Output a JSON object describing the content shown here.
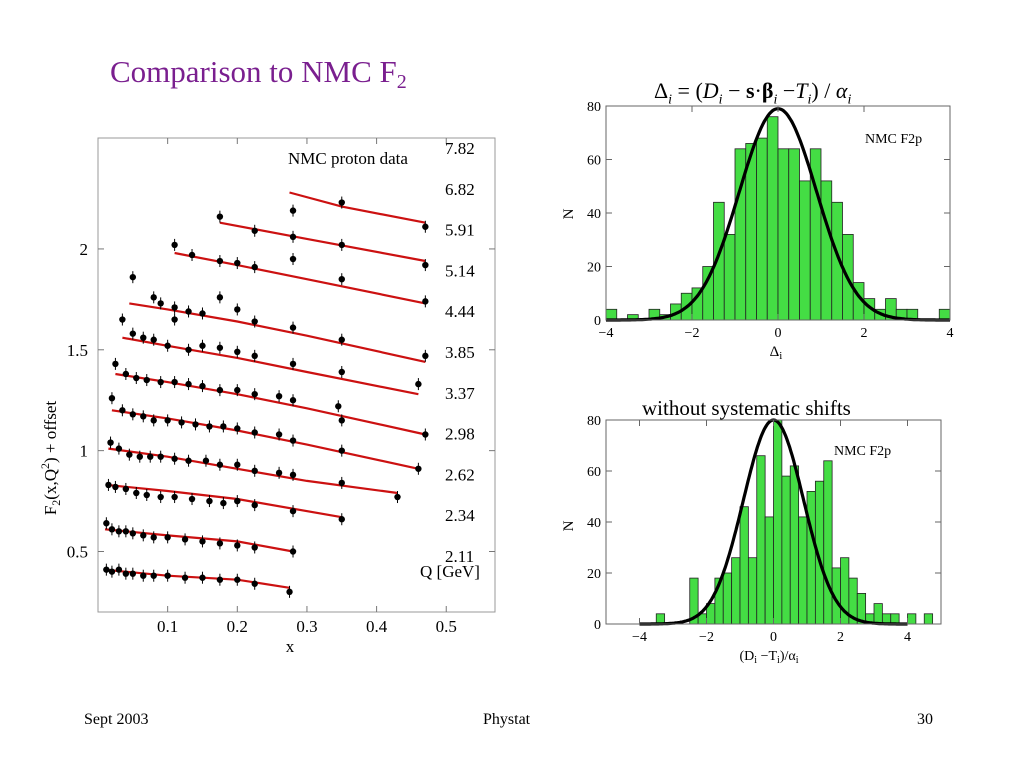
{
  "slide": {
    "title": "Comparison to NMC F",
    "title_sub": "2",
    "footer_left": "Sept 2003",
    "footer_center": "Phystat",
    "footer_right": "30",
    "title_color": "#7a1f8f"
  },
  "chart_data": [
    {
      "type": "scatter",
      "title": "",
      "xlabel": "x",
      "ylabel": "F2(x,Q2) + offset",
      "xlim": [
        0,
        0.57
      ],
      "ylim": [
        0.2,
        2.55
      ],
      "xticks": [
        "0.1",
        "0.2",
        "0.3",
        "0.4",
        "0.5"
      ],
      "xtick_values": [
        0.1,
        0.2,
        0.3,
        0.4,
        0.5
      ],
      "yticks": [
        "0.5",
        "1",
        "1.5",
        "2"
      ],
      "ytick_values": [
        0.5,
        1,
        1.5,
        2
      ],
      "annotation": "NMC proton  data",
      "q_header": "Q [GeV]",
      "fit_color": "#cc1111",
      "series": [
        {
          "name": "2.11",
          "curve": [
            [
              0.008,
              0.41
            ],
            [
              0.1,
              0.38
            ],
            [
              0.2,
              0.36
            ],
            [
              0.275,
              0.32
            ]
          ],
          "points": [
            [
              0.012,
              0.41
            ],
            [
              0.02,
              0.4
            ],
            [
              0.03,
              0.41
            ],
            [
              0.04,
              0.39
            ],
            [
              0.05,
              0.39
            ],
            [
              0.065,
              0.38
            ],
            [
              0.08,
              0.38
            ],
            [
              0.1,
              0.38
            ],
            [
              0.125,
              0.37
            ],
            [
              0.15,
              0.37
            ],
            [
              0.175,
              0.36
            ],
            [
              0.2,
              0.36
            ],
            [
              0.225,
              0.34
            ],
            [
              0.275,
              0.3
            ]
          ]
        },
        {
          "name": "2.34",
          "curve": [
            [
              0.01,
              0.61
            ],
            [
              0.1,
              0.58
            ],
            [
              0.2,
              0.55
            ],
            [
              0.28,
              0.5
            ]
          ],
          "points": [
            [
              0.012,
              0.64
            ],
            [
              0.02,
              0.61
            ],
            [
              0.03,
              0.6
            ],
            [
              0.04,
              0.6
            ],
            [
              0.05,
              0.59
            ],
            [
              0.065,
              0.58
            ],
            [
              0.08,
              0.57
            ],
            [
              0.1,
              0.57
            ],
            [
              0.125,
              0.56
            ],
            [
              0.15,
              0.55
            ],
            [
              0.175,
              0.54
            ],
            [
              0.2,
              0.53
            ],
            [
              0.225,
              0.52
            ],
            [
              0.28,
              0.5
            ]
          ]
        },
        {
          "name": "2.62",
          "curve": [
            [
              0.012,
              0.83
            ],
            [
              0.1,
              0.8
            ],
            [
              0.2,
              0.76
            ],
            [
              0.35,
              0.67
            ]
          ],
          "points": [
            [
              0.015,
              0.83
            ],
            [
              0.025,
              0.82
            ],
            [
              0.04,
              0.81
            ],
            [
              0.055,
              0.79
            ],
            [
              0.07,
              0.78
            ],
            [
              0.09,
              0.77
            ],
            [
              0.11,
              0.77
            ],
            [
              0.135,
              0.76
            ],
            [
              0.16,
              0.75
            ],
            [
              0.18,
              0.74
            ],
            [
              0.2,
              0.75
            ],
            [
              0.225,
              0.73
            ],
            [
              0.28,
              0.7
            ],
            [
              0.35,
              0.66
            ]
          ]
        },
        {
          "name": "2.98",
          "curve": [
            [
              0.015,
              1.01
            ],
            [
              0.1,
              0.97
            ],
            [
              0.2,
              0.91
            ],
            [
              0.3,
              0.85
            ],
            [
              0.43,
              0.79
            ]
          ],
          "points": [
            [
              0.018,
              1.04
            ],
            [
              0.03,
              1.01
            ],
            [
              0.045,
              0.98
            ],
            [
              0.06,
              0.97
            ],
            [
              0.075,
              0.97
            ],
            [
              0.09,
              0.97
            ],
            [
              0.11,
              0.96
            ],
            [
              0.13,
              0.95
            ],
            [
              0.155,
              0.95
            ],
            [
              0.175,
              0.93
            ],
            [
              0.2,
              0.93
            ],
            [
              0.225,
              0.9
            ],
            [
              0.26,
              0.89
            ],
            [
              0.28,
              0.88
            ],
            [
              0.35,
              0.84
            ],
            [
              0.43,
              0.77
            ]
          ]
        },
        {
          "name": "3.37",
          "curve": [
            [
              0.02,
              1.2
            ],
            [
              0.1,
              1.16
            ],
            [
              0.2,
              1.1
            ],
            [
              0.3,
              1.03
            ],
            [
              0.46,
              0.91
            ]
          ],
          "points": [
            [
              0.02,
              1.26
            ],
            [
              0.035,
              1.2
            ],
            [
              0.05,
              1.18
            ],
            [
              0.065,
              1.17
            ],
            [
              0.08,
              1.15
            ],
            [
              0.1,
              1.15
            ],
            [
              0.12,
              1.14
            ],
            [
              0.14,
              1.13
            ],
            [
              0.16,
              1.12
            ],
            [
              0.18,
              1.12
            ],
            [
              0.2,
              1.11
            ],
            [
              0.225,
              1.09
            ],
            [
              0.26,
              1.08
            ],
            [
              0.28,
              1.05
            ],
            [
              0.35,
              1.0
            ],
            [
              0.46,
              0.91
            ]
          ]
        },
        {
          "name": "3.85",
          "curve": [
            [
              0.025,
              1.38
            ],
            [
              0.1,
              1.34
            ],
            [
              0.2,
              1.28
            ],
            [
              0.3,
              1.21
            ],
            [
              0.47,
              1.08
            ]
          ],
          "points": [
            [
              0.025,
              1.43
            ],
            [
              0.04,
              1.38
            ],
            [
              0.055,
              1.36
            ],
            [
              0.07,
              1.35
            ],
            [
              0.09,
              1.34
            ],
            [
              0.11,
              1.34
            ],
            [
              0.13,
              1.33
            ],
            [
              0.15,
              1.32
            ],
            [
              0.175,
              1.3
            ],
            [
              0.2,
              1.3
            ],
            [
              0.225,
              1.28
            ],
            [
              0.26,
              1.27
            ],
            [
              0.28,
              1.25
            ],
            [
              0.345,
              1.22
            ],
            [
              0.35,
              1.15
            ],
            [
              0.47,
              1.08
            ]
          ]
        },
        {
          "name": "4.44",
          "curve": [
            [
              0.035,
              1.56
            ],
            [
              0.1,
              1.52
            ],
            [
              0.2,
              1.46
            ],
            [
              0.3,
              1.39
            ],
            [
              0.46,
              1.28
            ]
          ],
          "points": [
            [
              0.035,
              1.65
            ],
            [
              0.05,
              1.58
            ],
            [
              0.065,
              1.56
            ],
            [
              0.08,
              1.55
            ],
            [
              0.1,
              1.52
            ],
            [
              0.11,
              1.65
            ],
            [
              0.13,
              1.5
            ],
            [
              0.15,
              1.52
            ],
            [
              0.175,
              1.51
            ],
            [
              0.2,
              1.49
            ],
            [
              0.225,
              1.47
            ],
            [
              0.28,
              1.43
            ],
            [
              0.35,
              1.39
            ],
            [
              0.46,
              1.33
            ]
          ]
        },
        {
          "name": "5.14",
          "curve": [
            [
              0.045,
              1.73
            ],
            [
              0.1,
              1.7
            ],
            [
              0.2,
              1.64
            ],
            [
              0.3,
              1.57
            ],
            [
              0.47,
              1.44
            ]
          ],
          "points": [
            [
              0.05,
              1.86
            ],
            [
              0.08,
              1.76
            ],
            [
              0.09,
              1.73
            ],
            [
              0.11,
              1.71
            ],
            [
              0.13,
              1.69
            ],
            [
              0.15,
              1.68
            ],
            [
              0.175,
              1.76
            ],
            [
              0.2,
              1.7
            ],
            [
              0.225,
              1.64
            ],
            [
              0.28,
              1.61
            ],
            [
              0.35,
              1.55
            ],
            [
              0.47,
              1.47
            ]
          ]
        },
        {
          "name": "5.91",
          "curve": [
            [
              0.11,
              1.98
            ],
            [
              0.2,
              1.92
            ],
            [
              0.3,
              1.85
            ],
            [
              0.47,
              1.73
            ]
          ],
          "points": [
            [
              0.11,
              2.02
            ],
            [
              0.135,
              1.97
            ],
            [
              0.175,
              1.94
            ],
            [
              0.2,
              1.93
            ],
            [
              0.225,
              1.91
            ],
            [
              0.28,
              1.95
            ],
            [
              0.35,
              1.85
            ],
            [
              0.47,
              1.74
            ]
          ]
        },
        {
          "name": "6.82",
          "curve": [
            [
              0.175,
              2.13
            ],
            [
              0.3,
              2.05
            ],
            [
              0.47,
              1.94
            ]
          ],
          "points": [
            [
              0.175,
              2.16
            ],
            [
              0.225,
              2.09
            ],
            [
              0.28,
              2.19
            ],
            [
              0.28,
              2.06
            ],
            [
              0.35,
              2.02
            ],
            [
              0.47,
              1.92
            ]
          ]
        },
        {
          "name": "7.82",
          "curve": [
            [
              0.275,
              2.28
            ],
            [
              0.35,
              2.21
            ],
            [
              0.47,
              2.13
            ]
          ],
          "points": [
            [
              0.35,
              2.23
            ],
            [
              0.47,
              2.11
            ]
          ]
        }
      ]
    },
    {
      "type": "bar",
      "title": "Δi = (Di − s·βi − Ti) / αi",
      "title_parts": {
        "lhs": "Δ",
        "lhs_sub": "i",
        "eq": " = (",
        "d": "D",
        "d_sub": "i",
        "minus1": " − ",
        "s": "s",
        "dot": "·",
        "beta": "β",
        "beta_sub": "i",
        "minus2": " −",
        "t": "T",
        "t_sub": "i",
        "close": ") / ",
        "alpha": "α",
        "alpha_sub": "i"
      },
      "xlabel": "Δ",
      "xlabel_sub": "i",
      "ylabel": "N",
      "legend": "NMC F2p",
      "xlim": [
        -4.0,
        4.0
      ],
      "ylim": [
        0,
        80
      ],
      "xticks": [
        "−4",
        "−2",
        "0",
        "2",
        "4"
      ],
      "xtick_values": [
        -4,
        -2,
        0,
        2,
        4
      ],
      "yticks": [
        "0",
        "20",
        "40",
        "60",
        "80"
      ],
      "ytick_values": [
        0,
        20,
        40,
        60,
        80
      ],
      "bin_width": 0.25,
      "bin_starts": [
        -4.0,
        -3.75,
        -3.5,
        -3.25,
        -3.0,
        -2.75,
        -2.5,
        -2.25,
        -2.0,
        -1.75,
        -1.5,
        -1.25,
        -1.0,
        -0.75,
        -0.5,
        -0.25,
        0.0,
        0.25,
        0.5,
        0.75,
        1.0,
        1.25,
        1.5,
        1.75,
        2.0,
        2.25,
        2.5,
        2.75,
        3.0,
        3.25,
        3.5,
        3.75
      ],
      "values": [
        4,
        0,
        2,
        0,
        4,
        2,
        6,
        10,
        12,
        20,
        44,
        32,
        64,
        66,
        68,
        76,
        64,
        64,
        52,
        64,
        52,
        44,
        32,
        14,
        8,
        4,
        8,
        4,
        4,
        0,
        0,
        4
      ],
      "fit_gaussian": {
        "mean": 0.0,
        "peak": 79,
        "sigma": 0.9
      },
      "bar_color": "#44dd44"
    },
    {
      "type": "bar",
      "title": "without systematic shifts",
      "xlabel": "(D",
      "xlabel_parts": {
        "open": "(D",
        "d_sub": "i",
        "minus": " −T",
        "t_sub": "i",
        "close": ")/α",
        "a_sub": "i"
      },
      "ylabel": "N",
      "legend": "NMC F2p",
      "xlim": [
        -5.0,
        5.0
      ],
      "ylim": [
        0,
        80
      ],
      "xticks": [
        "−4",
        "−2",
        "0",
        "2",
        "4"
      ],
      "xtick_values": [
        -4,
        -2,
        0,
        2,
        4
      ],
      "yticks": [
        "0",
        "20",
        "40",
        "60",
        "80"
      ],
      "ytick_values": [
        0,
        20,
        40,
        60,
        80
      ],
      "bin_width": 0.25,
      "bin_starts": [
        -3.5,
        -3.25,
        -3.0,
        -2.75,
        -2.5,
        -2.25,
        -2.0,
        -1.75,
        -1.5,
        -1.25,
        -1.0,
        -0.75,
        -0.5,
        -0.25,
        0.0,
        0.25,
        0.5,
        0.75,
        1.0,
        1.25,
        1.5,
        1.75,
        2.0,
        2.25,
        2.5,
        2.75,
        3.0,
        3.25,
        3.5,
        3.75,
        4.0,
        4.25,
        4.5
      ],
      "values": [
        4,
        0,
        0,
        0,
        18,
        4,
        8,
        18,
        20,
        26,
        46,
        26,
        66,
        42,
        80,
        58,
        62,
        42,
        52,
        56,
        64,
        22,
        26,
        18,
        12,
        4,
        8,
        4,
        4,
        0,
        4,
        0,
        4
      ],
      "fit_gaussian": {
        "mean": 0.0,
        "peak": 80,
        "sigma": 0.9
      },
      "bar_color": "#44dd44"
    }
  ]
}
